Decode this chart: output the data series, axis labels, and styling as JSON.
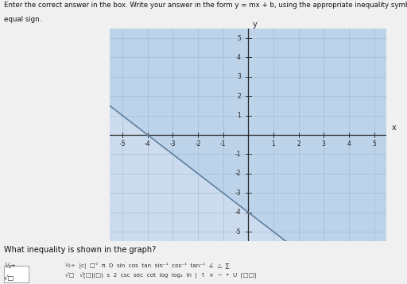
{
  "slope": -1,
  "intercept": -4,
  "xlim": [
    -5.5,
    5.5
  ],
  "ylim": [
    -5.5,
    5.5
  ],
  "xticks": [
    -5,
    -4,
    -3,
    -2,
    -1,
    1,
    2,
    3,
    4,
    5
  ],
  "yticks": [
    -5,
    -4,
    -3,
    -2,
    -1,
    1,
    2,
    3,
    4,
    5
  ],
  "shade_color": "#b8d0e8",
  "shade_alpha": 0.7,
  "line_color": "#6080a0",
  "line_width": 1.2,
  "grid_color": "#90b0cc",
  "grid_alpha": 0.6,
  "bg_color": "#f0f0f0",
  "graph_bg": "#ccdcee",
  "axis_color": "#222222",
  "question": "What inequality is shown in the graph?",
  "figsize": [
    5.12,
    3.58
  ],
  "dpi": 100,
  "header1": "Enter the correct answer in the box. Write your answer in the form y = mx + b, using the appropriate inequality symbol in place of the",
  "header2": "equal sign.",
  "toolbar1": "½÷  °  π  D  sin  cos  tan  sin⁻¹  cos⁻¹  tan⁻¹  ∠  △",
  "toolbar2": "√□   √[□](□)  s  2  csc  sec  cot  log  log₂  ln     U"
}
